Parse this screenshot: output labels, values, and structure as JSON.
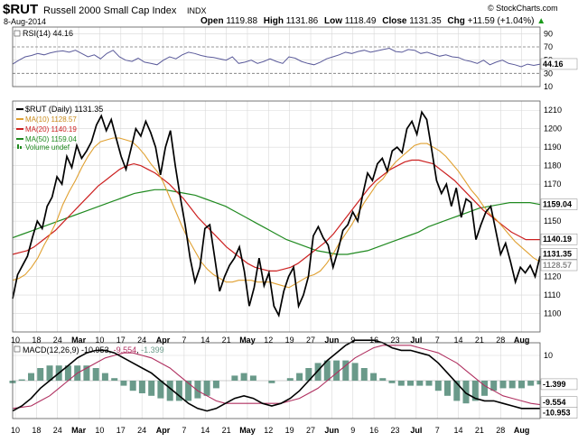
{
  "header": {
    "symbol": "$RUT",
    "name": "Russell 2000 Small Cap Index",
    "exchange": "INDX",
    "date": "8-Aug-2014",
    "quote": {
      "open_label": "Open",
      "open": "1119.88",
      "high_label": "High",
      "high": "1131.86",
      "low_label": "Low",
      "low": "1118.49",
      "close_label": "Close",
      "close": "1131.35",
      "chg_label": "Chg",
      "chg": "+11.59 (+1.04%)",
      "arrow": "▲"
    },
    "brand": "© StockCharts.com"
  },
  "colors": {
    "price": "#000000",
    "ma10": "#e0a030",
    "ma20": "#cc2020",
    "ma50": "#208a20",
    "rsi": "#5a5a9a",
    "macd": "#000000",
    "signal": "#b03060",
    "hist": "#6a9a8a",
    "volume": "#208a20",
    "grid": "#d8d8d8",
    "frame": "#555555"
  },
  "x_ticks": [
    "10",
    "18",
    "24",
    "Mar",
    "10",
    "17",
    "24",
    "Apr",
    "7",
    "14",
    "21",
    "May",
    "12",
    "19",
    "27",
    "Jun",
    "9",
    "16",
    "23",
    "Jul",
    "7",
    "14",
    "21",
    "28",
    "Aug"
  ],
  "chart_data": [
    {
      "type": "line",
      "title": "RSI(14) 44.16",
      "legend": [
        {
          "name": "RSI(14)",
          "value": "44.16"
        }
      ],
      "ylim": [
        10,
        100
      ],
      "y_ticks": [
        90,
        70,
        50,
        30,
        10
      ],
      "reference_lines": [
        70,
        30
      ],
      "last_value": "44.16",
      "series": [
        {
          "name": "RSI(14)",
          "values": [
            44,
            50,
            55,
            57,
            60,
            58,
            61,
            63,
            64,
            62,
            65,
            60,
            55,
            58,
            52,
            60,
            65,
            55,
            50,
            48,
            53,
            47,
            45,
            43,
            50,
            55,
            52,
            58,
            62,
            60,
            57,
            55,
            54,
            52,
            50,
            55,
            45,
            47,
            50,
            45,
            48,
            52,
            48,
            45,
            55,
            53,
            48,
            45,
            43,
            47,
            52,
            55,
            58,
            62,
            60,
            63,
            65,
            62,
            64,
            66,
            68,
            63,
            62,
            66,
            65,
            60,
            62,
            59,
            56,
            58,
            55,
            54,
            50,
            48,
            45,
            50,
            43,
            47,
            50,
            45,
            43,
            40,
            44,
            42,
            44
          ]
        }
      ]
    },
    {
      "type": "line",
      "title": "$RUT (Daily) 1131.35",
      "legend": [
        {
          "name": "$RUT (Daily)",
          "value": "1131.35"
        },
        {
          "name": "MA(10)",
          "value": "1128.57"
        },
        {
          "name": "MA(20)",
          "value": "1140.19"
        },
        {
          "name": "MA(50)",
          "value": "1159.04"
        },
        {
          "name": "Volume",
          "value": "undef"
        }
      ],
      "ylim": [
        1090,
        1215
      ],
      "y_ticks": [
        1210,
        1200,
        1190,
        1180,
        1170,
        1160,
        1150,
        1140,
        1130,
        1120,
        1110,
        1100
      ],
      "price_labels": [
        "1159.04",
        "1140.19",
        "1131.35",
        "1128.57"
      ],
      "series": [
        {
          "name": "$RUT (Daily)",
          "values": [
            1108,
            1121,
            1126,
            1131,
            1141,
            1150,
            1146,
            1158,
            1163,
            1174,
            1170,
            1185,
            1179,
            1191,
            1184,
            1188,
            1193,
            1202,
            1207,
            1199,
            1205,
            1195,
            1185,
            1178,
            1189,
            1200,
            1196,
            1204,
            1198,
            1190,
            1175,
            1190,
            1199,
            1180,
            1163,
            1148,
            1130,
            1117,
            1125,
            1146,
            1148,
            1130,
            1112,
            1120,
            1126,
            1130,
            1136,
            1123,
            1104,
            1114,
            1130,
            1115,
            1122,
            1104,
            1099,
            1112,
            1120,
            1125,
            1104,
            1110,
            1120,
            1142,
            1147,
            1141,
            1137,
            1125,
            1134,
            1145,
            1148,
            1155,
            1150,
            1164,
            1176,
            1172,
            1181,
            1184,
            1177,
            1188,
            1190,
            1187,
            1200,
            1204,
            1197,
            1209,
            1205,
            1189,
            1172,
            1165,
            1170,
            1158,
            1168,
            1152,
            1162,
            1160,
            1140,
            1148,
            1155,
            1158,
            1145,
            1132,
            1138,
            1128,
            1117,
            1125,
            1122,
            1126,
            1120,
            1131
          ]
        },
        {
          "name": "MA(10)",
          "values": [
            1118,
            1119,
            1121,
            1125,
            1130,
            1137,
            1143,
            1150,
            1159,
            1166,
            1172,
            1179,
            1185,
            1190,
            1193,
            1194,
            1195,
            1195,
            1194,
            1193,
            1190,
            1186,
            1181,
            1177,
            1171,
            1163,
            1155,
            1147,
            1140,
            1134,
            1128,
            1124,
            1121,
            1119,
            1117,
            1117,
            1118,
            1118,
            1118,
            1117,
            1117,
            1117,
            1116,
            1115,
            1114,
            1116,
            1118,
            1120,
            1121,
            1123,
            1127,
            1132,
            1138,
            1143,
            1148,
            1154,
            1160,
            1165,
            1170,
            1173,
            1178,
            1182,
            1185,
            1188,
            1191,
            1192,
            1192,
            1190,
            1188,
            1185,
            1181,
            1177,
            1172,
            1167,
            1163,
            1158,
            1154,
            1151,
            1147,
            1143,
            1139,
            1136,
            1133,
            1130,
            1128
          ]
        },
        {
          "name": "MA(20)",
          "values": [
            1132,
            1133,
            1134,
            1136,
            1139,
            1142,
            1145,
            1149,
            1153,
            1157,
            1161,
            1165,
            1169,
            1172,
            1175,
            1178,
            1180,
            1181,
            1180,
            1178,
            1176,
            1173,
            1170,
            1166,
            1162,
            1157,
            1152,
            1148,
            1144,
            1140,
            1136,
            1133,
            1130,
            1127,
            1125,
            1124,
            1123,
            1123,
            1124,
            1125,
            1127,
            1130,
            1133,
            1136,
            1139,
            1143,
            1148,
            1153,
            1158,
            1163,
            1168,
            1172,
            1175,
            1178,
            1180,
            1182,
            1183,
            1183,
            1182,
            1181,
            1178,
            1175,
            1172,
            1168,
            1164,
            1160,
            1156,
            1153,
            1150,
            1147,
            1144,
            1142,
            1140,
            1140,
            1140
          ]
        },
        {
          "name": "MA(50)",
          "values": [
            1141,
            1143,
            1145,
            1147,
            1149,
            1151,
            1153,
            1155,
            1157,
            1159,
            1161,
            1163,
            1165,
            1166,
            1167,
            1167,
            1166,
            1165,
            1164,
            1162,
            1160,
            1158,
            1155,
            1152,
            1149,
            1146,
            1143,
            1140,
            1138,
            1136,
            1134,
            1133,
            1132,
            1132,
            1133,
            1134,
            1136,
            1138,
            1140,
            1142,
            1144,
            1147,
            1149,
            1151,
            1153,
            1155,
            1157,
            1158,
            1159,
            1160,
            1160,
            1160,
            1159
          ]
        }
      ]
    },
    {
      "type": "bar",
      "title": "MACD(12,26,9) -10.953, -9.554, -1.399",
      "legend": [
        {
          "name": "MACD(12,26,9)",
          "value": "-10.953"
        },
        {
          "name": "signal",
          "value": "-9.554"
        },
        {
          "name": "histogram",
          "value": "-1.399"
        }
      ],
      "ylim": [
        -15,
        15
      ],
      "y_ticks": [
        10
      ],
      "zero_line": 0,
      "price_labels": [
        "-1.399",
        "-9.554",
        "-10.953"
      ],
      "series": [
        {
          "name": "MACD",
          "values": [
            -12,
            -10,
            -7,
            -3,
            0,
            3,
            6,
            9,
            11,
            12,
            12,
            11,
            9,
            7,
            5,
            3,
            0,
            -3,
            -6,
            -9,
            -11,
            -12,
            -11,
            -9,
            -7,
            -6,
            -7,
            -9,
            -10,
            -9,
            -7,
            -4,
            0,
            4,
            8,
            11,
            14,
            16,
            16,
            16,
            15,
            13,
            12,
            12,
            11,
            10,
            7,
            3,
            -1,
            -5,
            -7,
            -8,
            -8,
            -9,
            -10,
            -11,
            -11,
            -11
          ]
        },
        {
          "name": "Signal",
          "values": [
            -11,
            -10.5,
            -10,
            -8,
            -6,
            -3,
            0,
            3,
            5,
            7,
            9,
            10,
            11,
            11,
            10,
            9,
            7,
            5,
            2,
            -1,
            -4,
            -6,
            -8,
            -9,
            -9,
            -9,
            -9,
            -9,
            -9,
            -9,
            -8,
            -7,
            -5,
            -3,
            0,
            3,
            6,
            9,
            11,
            13,
            14,
            14,
            14,
            14,
            13,
            12,
            11,
            9,
            7,
            4,
            1,
            -2,
            -4,
            -6,
            -7,
            -8,
            -9,
            -9.5
          ]
        },
        {
          "name": "Histogram",
          "values": [
            -1,
            0.5,
            3,
            5,
            6,
            6,
            6,
            6,
            6,
            5,
            3,
            1,
            -2,
            -4,
            -5,
            -6,
            -7,
            -8,
            -8,
            -8,
            -7,
            -6,
            -3,
            0,
            2,
            3,
            2,
            0,
            -1,
            0,
            1,
            3,
            5,
            7,
            8,
            8,
            8,
            7,
            5,
            3,
            1,
            -1,
            -2,
            -2,
            -2,
            -2,
            -4,
            -6,
            -8,
            -9,
            -8,
            -6,
            -4,
            -3,
            -3,
            -3,
            -2,
            -1.5
          ]
        }
      ]
    }
  ]
}
